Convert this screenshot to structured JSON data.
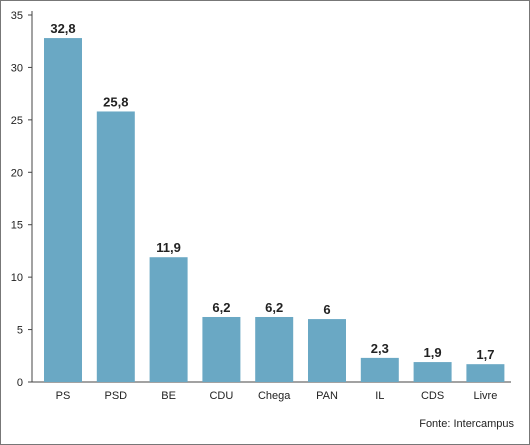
{
  "chart_data": {
    "type": "bar",
    "categories": [
      "PS",
      "PSD",
      "BE",
      "CDU",
      "Chega",
      "PAN",
      "IL",
      "CDS",
      "Livre"
    ],
    "values": [
      32.8,
      25.8,
      11.9,
      6.2,
      6.2,
      6,
      2.3,
      1.9,
      1.7
    ],
    "value_labels": [
      "32,8",
      "25,8",
      "11,9",
      "6,2",
      "6,2",
      "6",
      "2,3",
      "1,9",
      "1,7"
    ],
    "y_ticks": [
      0,
      5,
      10,
      15,
      20,
      25,
      30,
      35
    ],
    "ylim": [
      0,
      35
    ],
    "grid": false,
    "bar_color": "#6aa8c4",
    "title": "",
    "xlabel": "",
    "ylabel": ""
  },
  "source": "Fonte: Intercampus"
}
